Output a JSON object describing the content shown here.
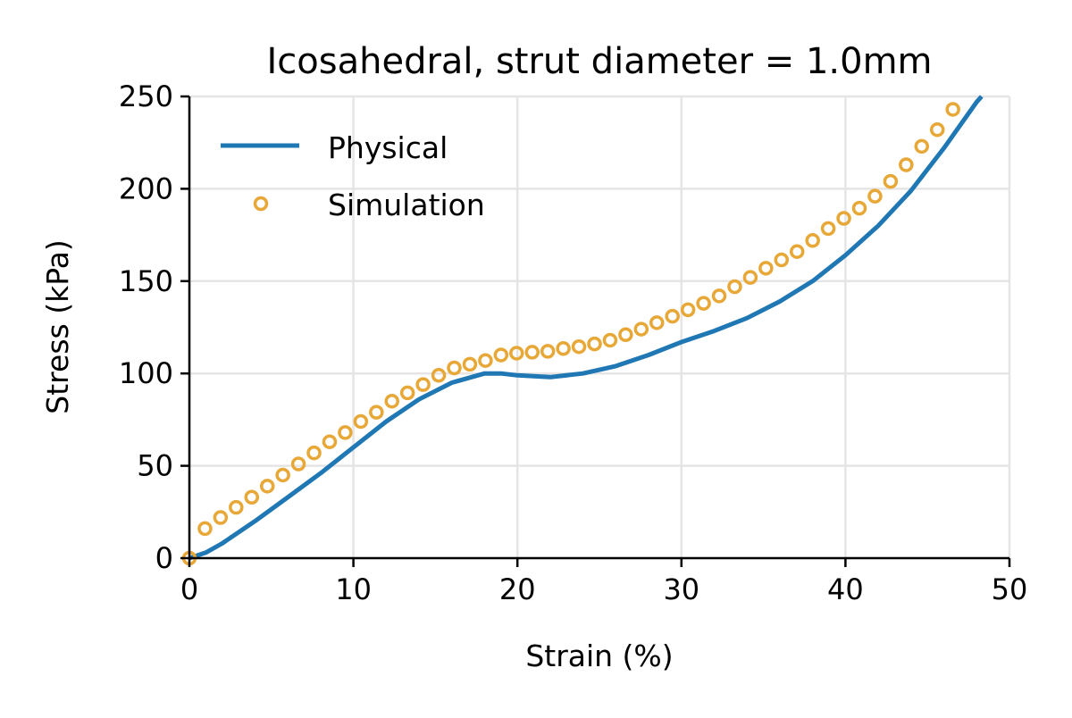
{
  "chart_data": {
    "type": "line",
    "title": "Icosahedral, strut diameter = 1.0mm",
    "xlabel": "Strain (%)",
    "ylabel": "Stress (kPa)",
    "xlim": [
      0,
      50
    ],
    "ylim": [
      0,
      250
    ],
    "xticks": [
      "0",
      "10",
      "20",
      "30",
      "40",
      "50"
    ],
    "yticks": [
      "0",
      "50",
      "100",
      "150",
      "200",
      "250"
    ],
    "grid": true,
    "legend_position": "top-left",
    "series": [
      {
        "name": "Physical",
        "style": "line",
        "color": "#1f77b4",
        "x": [
          0,
          1,
          2,
          4,
          6,
          8,
          10,
          12,
          14,
          16,
          18,
          19,
          20,
          22,
          24,
          26,
          28,
          30,
          32,
          34,
          36,
          38,
          40,
          42,
          44,
          46,
          48,
          48.3
        ],
        "y": [
          0,
          3,
          8,
          20,
          33,
          46,
          60,
          74,
          86,
          95,
          100,
          100,
          99,
          98,
          100,
          104,
          110,
          117,
          123,
          130,
          139,
          150,
          164,
          180,
          199,
          222,
          247,
          250
        ]
      },
      {
        "name": "Simulation",
        "style": "open-circle",
        "color": "#e8a838",
        "x_start": 0,
        "x_step": 0.95,
        "y": [
          0,
          16,
          22,
          27.5,
          33,
          39,
          45,
          51,
          57,
          63,
          68,
          74,
          79,
          85,
          89.5,
          94,
          99,
          103,
          105,
          107,
          110,
          111,
          111.5,
          112,
          113.5,
          114.5,
          116,
          118,
          121,
          124,
          127.5,
          131,
          134.5,
          138,
          142,
          147,
          152,
          157,
          161.5,
          166,
          172,
          178.5,
          184,
          189.5,
          196,
          204,
          213,
          223,
          232,
          243
        ]
      }
    ]
  }
}
